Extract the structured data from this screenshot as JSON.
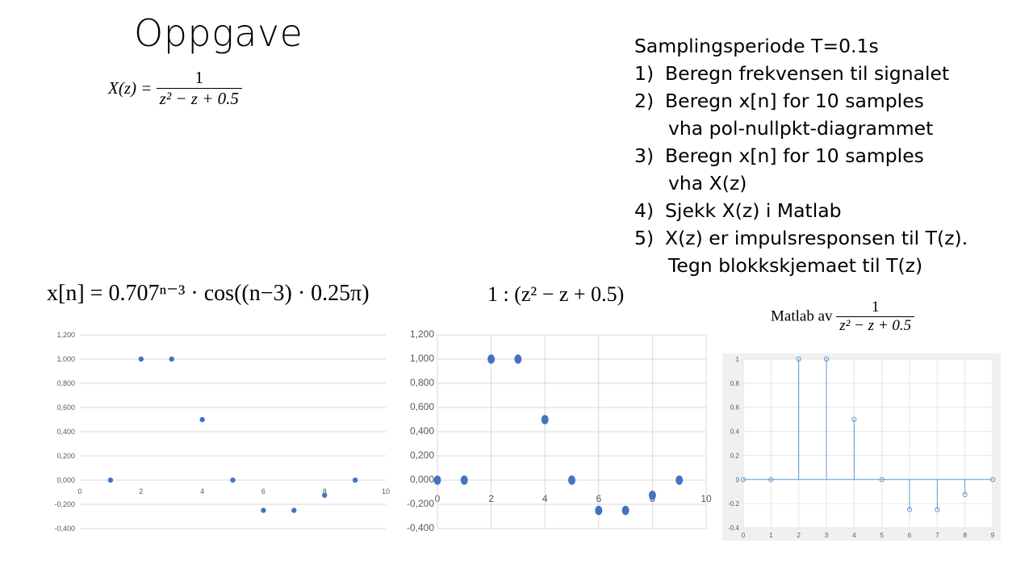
{
  "slide": {
    "title": "Oppgave",
    "xz_formula": {
      "lhs": "X(z) =",
      "numerator": "1",
      "denominator": "z² − z + 0.5"
    },
    "tasks": [
      {
        "num": "",
        "text": "Samplingsperiode T=0.1s"
      },
      {
        "num": "1)",
        "text": "Beregn frekvensen til signalet"
      },
      {
        "num": "2)",
        "text": "Beregn x[n] for 10 samples"
      },
      {
        "num": "",
        "text": "vha pol-nullpkt-diagrammet",
        "indent": true
      },
      {
        "num": "3)",
        "text": "Beregn x[n] for 10 samples"
      },
      {
        "num": "",
        "text": "vha X(z)",
        "indent": true
      },
      {
        "num": "4)",
        "text": "Sjekk X(z) i Matlab"
      },
      {
        "num": "5)",
        "text": "X(z) er impulsresponsen til T(z)."
      },
      {
        "num": "",
        "text": "Tegn blokkskjemaet til T(z)",
        "indent": true
      }
    ],
    "xn_formula": "x[n] = 0.707ⁿ⁻³ · cos((n−3) · 0.25π)",
    "division_formula": "1 : (z² − z + 0.5)",
    "matlab_label": {
      "prefix": "Matlab av",
      "numerator": "1",
      "denominator": "z² − z + 0.5"
    }
  },
  "chart_data": [
    {
      "type": "scatter",
      "title": "",
      "xlim": [
        0,
        10
      ],
      "ylim": [
        -0.4,
        1.2
      ],
      "x_ticks": [
        "0",
        "2",
        "4",
        "6",
        "8",
        "10"
      ],
      "y_ticks": [
        "-0,400",
        "-0,200",
        "0,000",
        "0,200",
        "0,400",
        "0,600",
        "0,800",
        "1,000",
        "1,200"
      ],
      "grid": true,
      "x": [
        1,
        2,
        3,
        4,
        5,
        6,
        7,
        8,
        9
      ],
      "y": [
        0,
        1,
        1,
        0.5,
        0,
        -0.25,
        -0.25,
        -0.125,
        0
      ],
      "color": "#4472c4"
    },
    {
      "type": "scatter",
      "title": "",
      "xlim": [
        0,
        10
      ],
      "ylim": [
        -0.4,
        1.2
      ],
      "x_ticks": [
        "0",
        "2",
        "4",
        "6",
        "8",
        "10"
      ],
      "y_ticks": [
        "-0,400",
        "-0,200",
        "0,000",
        "0,200",
        "0,400",
        "0,600",
        "0,800",
        "1,000",
        "1,200"
      ],
      "grid": true,
      "x": [
        0,
        1,
        2,
        3,
        4,
        5,
        6,
        7,
        8,
        9
      ],
      "y": [
        0,
        0,
        1,
        1,
        0.5,
        0,
        -0.25,
        -0.25,
        -0.125,
        0
      ],
      "color": "#4472c4"
    },
    {
      "type": "stem",
      "title": "",
      "xlim": [
        0,
        9
      ],
      "ylim": [
        -0.4,
        1
      ],
      "x_ticks": [
        "0",
        "1",
        "2",
        "3",
        "4",
        "5",
        "6",
        "7",
        "8",
        "9"
      ],
      "y_ticks": [
        "-0.4",
        "-0.2",
        "0",
        "0.2",
        "0.4",
        "0.6",
        "0.8",
        "1"
      ],
      "grid": true,
      "x": [
        0,
        1,
        2,
        3,
        4,
        5,
        6,
        7,
        8,
        9
      ],
      "y": [
        0,
        0,
        1,
        1,
        0.5,
        0,
        -0.25,
        -0.25,
        -0.125,
        0
      ],
      "color": "#5b9bd5"
    }
  ]
}
